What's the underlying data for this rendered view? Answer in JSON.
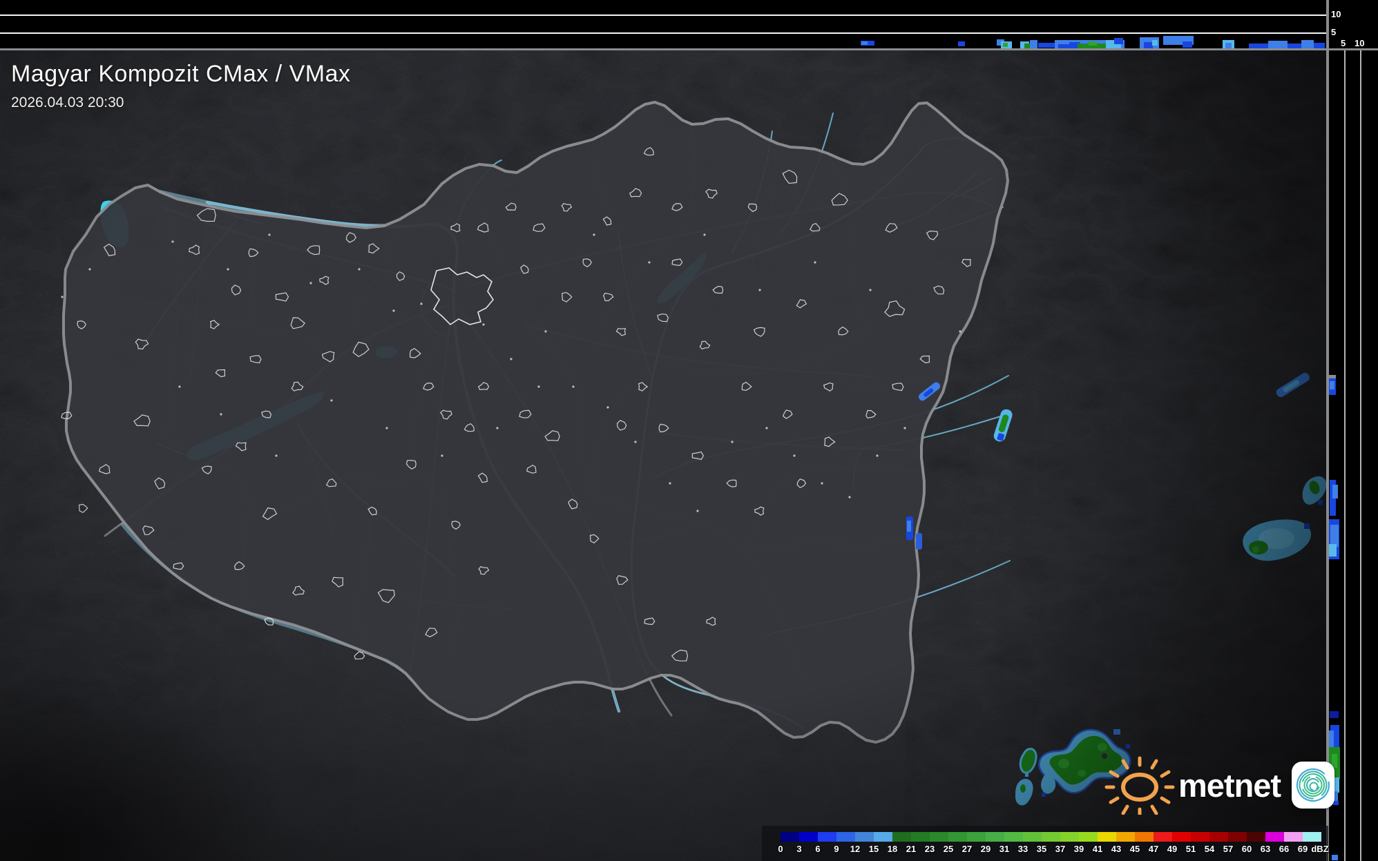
{
  "header": {
    "title": "Magyar Kompozit CMax / VMax",
    "timestamp": "2026.04.03 20:30"
  },
  "profile_axes": {
    "top_strip_height_ticks": [
      "10",
      "5"
    ],
    "right_strip_distance_ticks": [
      "5",
      "10"
    ]
  },
  "legend": {
    "unit": "dBZ",
    "ticks": [
      "0",
      "3",
      "6",
      "9",
      "12",
      "15",
      "18",
      "21",
      "23",
      "25",
      "27",
      "29",
      "31",
      "33",
      "35",
      "37",
      "39",
      "41",
      "43",
      "45",
      "47",
      "49",
      "51",
      "54",
      "57",
      "60",
      "63",
      "66",
      "69"
    ],
    "colors": [
      "#000082",
      "#0000C8",
      "#1E3CF0",
      "#2E64E6",
      "#4284D8",
      "#55AAE8",
      "#1E6E1E",
      "#237B23",
      "#2A892A",
      "#329632",
      "#3BA33B",
      "#45AF45",
      "#52BA42",
      "#62C23A",
      "#73CA31",
      "#85D229",
      "#97DB1F",
      "#E8D800",
      "#F0A800",
      "#F07800",
      "#EE1A1A",
      "#E30000",
      "#C80000",
      "#A80000",
      "#7E0000",
      "#4A0404",
      "#DC00DC",
      "#F0A0F0",
      "#A0F0F0"
    ]
  },
  "branding": {
    "logo_text": "metnet",
    "icons": {
      "sun": "sun-icon",
      "spiral": "spiral-logo-icon"
    }
  },
  "colors": {
    "background": "#000000",
    "terrain": "#35363C",
    "terrain_outside": "#27282D",
    "country_border": "#8E9094",
    "river": "#68AECB",
    "lake": "#3FD9F5",
    "city_outline": "#E9EAEC",
    "echo_blue": "#1747E0",
    "echo_light_blue": "#3E7FE8",
    "echo_cyan": "#56B9EE",
    "echo_green": "#1E8A1E",
    "grid_line": "#FFFFFF",
    "divider": "#8A8B8F"
  }
}
